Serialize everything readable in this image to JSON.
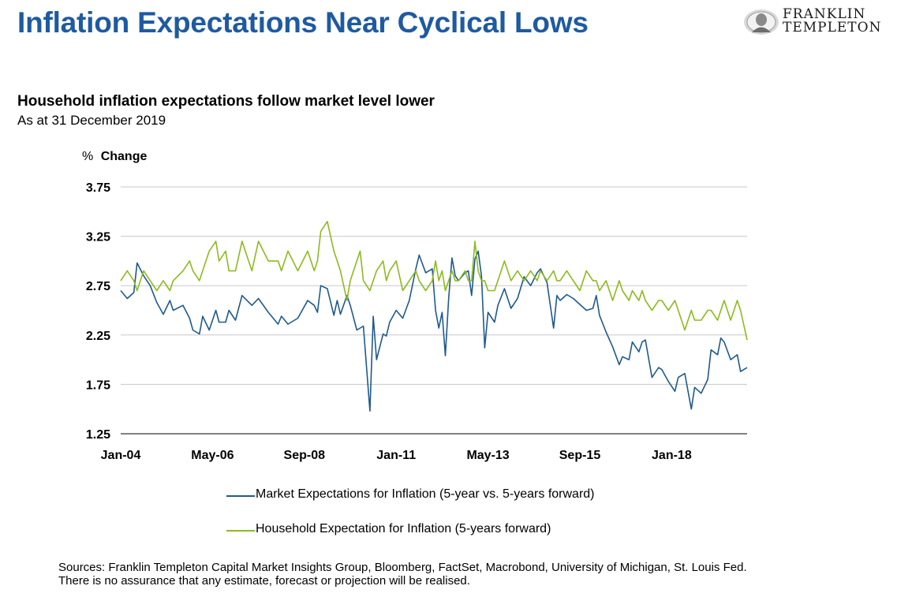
{
  "header": {
    "title": "Inflation Expectations Near Cyclical Lows",
    "logo_line1": "FRANKLIN",
    "logo_line2": "TEMPLETON"
  },
  "chart_header": {
    "subtitle": "Household inflation expectations follow market level lower",
    "as_at": "As at 31 December 2019"
  },
  "colors": {
    "title": "#1f5aa0",
    "market": "#1f5a8c",
    "household": "#8dba1f",
    "grid": "#c8c8c8"
  },
  "chart_data": {
    "type": "line",
    "ylabel_prefix": "%",
    "ylabel": "Change",
    "ylim": [
      1.25,
      3.75
    ],
    "yticks": [
      "3.75",
      "3.25",
      "2.75",
      "2.25",
      "1.75",
      "1.25"
    ],
    "x_range": [
      "2004-01",
      "2019-12"
    ],
    "xticks": [
      {
        "label": "Jan-04",
        "date": "2004-01"
      },
      {
        "label": "May-06",
        "date": "2006-05"
      },
      {
        "label": "Sep-08",
        "date": "2008-09"
      },
      {
        "label": "Jan-11",
        "date": "2011-01"
      },
      {
        "label": "May-13",
        "date": "2013-05"
      },
      {
        "label": "Sep-15",
        "date": "2015-09"
      },
      {
        "label": "Jan-18",
        "date": "2018-01"
      }
    ],
    "grid": "horizontal",
    "legend_position": "bottom",
    "series": [
      {
        "name": "Market Expectations for Inflation (5-year vs. 5-years forward)",
        "points": [
          [
            "2004-01",
            2.7
          ],
          [
            "2004-03",
            2.62
          ],
          [
            "2004-05",
            2.68
          ],
          [
            "2004-06",
            2.98
          ],
          [
            "2004-08",
            2.85
          ],
          [
            "2004-10",
            2.75
          ],
          [
            "2004-12",
            2.58
          ],
          [
            "2005-02",
            2.46
          ],
          [
            "2005-04",
            2.6
          ],
          [
            "2005-05",
            2.5
          ],
          [
            "2005-08",
            2.55
          ],
          [
            "2005-10",
            2.42
          ],
          [
            "2005-11",
            2.3
          ],
          [
            "2006-01",
            2.26
          ],
          [
            "2006-02",
            2.44
          ],
          [
            "2006-04",
            2.3
          ],
          [
            "2006-06",
            2.5
          ],
          [
            "2006-07",
            2.38
          ],
          [
            "2006-09",
            2.38
          ],
          [
            "2006-10",
            2.5
          ],
          [
            "2006-12",
            2.4
          ],
          [
            "2007-02",
            2.65
          ],
          [
            "2007-05",
            2.55
          ],
          [
            "2007-07",
            2.62
          ],
          [
            "2007-10",
            2.48
          ],
          [
            "2008-01",
            2.36
          ],
          [
            "2008-02",
            2.44
          ],
          [
            "2008-04",
            2.36
          ],
          [
            "2008-07",
            2.42
          ],
          [
            "2008-10",
            2.6
          ],
          [
            "2008-12",
            2.55
          ],
          [
            "2009-01",
            2.48
          ],
          [
            "2009-02",
            2.75
          ],
          [
            "2009-04",
            2.72
          ],
          [
            "2009-06",
            2.45
          ],
          [
            "2009-07",
            2.6
          ],
          [
            "2009-08",
            2.46
          ],
          [
            "2009-10",
            2.65
          ],
          [
            "2009-11",
            2.55
          ],
          [
            "2010-01",
            2.3
          ],
          [
            "2010-02",
            2.32
          ],
          [
            "2010-03",
            2.34
          ],
          [
            "2010-05",
            1.48
          ],
          [
            "2010-06",
            2.44
          ],
          [
            "2010-07",
            2.0
          ],
          [
            "2010-09",
            2.26
          ],
          [
            "2010-10",
            2.24
          ],
          [
            "2010-11",
            2.38
          ],
          [
            "2011-01",
            2.5
          ],
          [
            "2011-03",
            2.42
          ],
          [
            "2011-05",
            2.6
          ],
          [
            "2011-07",
            2.92
          ],
          [
            "2011-08",
            3.06
          ],
          [
            "2011-10",
            2.88
          ],
          [
            "2011-12",
            2.92
          ],
          [
            "2012-01",
            2.5
          ],
          [
            "2012-02",
            2.32
          ],
          [
            "2012-03",
            2.48
          ],
          [
            "2012-04",
            2.04
          ],
          [
            "2012-05",
            2.62
          ],
          [
            "2012-06",
            3.03
          ],
          [
            "2012-07",
            2.85
          ],
          [
            "2012-08",
            2.8
          ],
          [
            "2012-10",
            2.88
          ],
          [
            "2012-11",
            2.9
          ],
          [
            "2012-12",
            2.65
          ],
          [
            "2013-01",
            3.02
          ],
          [
            "2013-02",
            3.1
          ],
          [
            "2013-03",
            2.85
          ],
          [
            "2013-04",
            2.12
          ],
          [
            "2013-05",
            2.48
          ],
          [
            "2013-07",
            2.38
          ],
          [
            "2013-08",
            2.55
          ],
          [
            "2013-10",
            2.72
          ],
          [
            "2013-12",
            2.52
          ],
          [
            "2014-02",
            2.62
          ],
          [
            "2014-04",
            2.84
          ],
          [
            "2014-06",
            2.75
          ],
          [
            "2014-08",
            2.88
          ],
          [
            "2014-09",
            2.92
          ],
          [
            "2014-11",
            2.78
          ],
          [
            "2015-01",
            2.32
          ],
          [
            "2015-02",
            2.65
          ],
          [
            "2015-03",
            2.6
          ],
          [
            "2015-05",
            2.66
          ],
          [
            "2015-07",
            2.62
          ],
          [
            "2015-09",
            2.56
          ],
          [
            "2015-11",
            2.5
          ],
          [
            "2016-01",
            2.52
          ],
          [
            "2016-02",
            2.65
          ],
          [
            "2016-03",
            2.45
          ],
          [
            "2016-05",
            2.28
          ],
          [
            "2016-07",
            2.13
          ],
          [
            "2016-09",
            1.95
          ],
          [
            "2016-10",
            2.03
          ],
          [
            "2016-12",
            2.0
          ],
          [
            "2017-01",
            2.18
          ],
          [
            "2017-03",
            2.08
          ],
          [
            "2017-04",
            2.18
          ],
          [
            "2017-05",
            2.2
          ],
          [
            "2017-07",
            1.82
          ],
          [
            "2017-09",
            1.92
          ],
          [
            "2017-10",
            1.9
          ],
          [
            "2017-12",
            1.78
          ],
          [
            "2018-02",
            1.68
          ],
          [
            "2018-03",
            1.82
          ],
          [
            "2018-05",
            1.86
          ],
          [
            "2018-07",
            1.5
          ],
          [
            "2018-08",
            1.72
          ],
          [
            "2018-10",
            1.66
          ],
          [
            "2018-12",
            1.8
          ],
          [
            "2019-01",
            2.1
          ],
          [
            "2019-03",
            2.05
          ],
          [
            "2019-04",
            2.22
          ],
          [
            "2019-05",
            2.18
          ],
          [
            "2019-07",
            2.0
          ],
          [
            "2019-09",
            2.05
          ],
          [
            "2019-10",
            1.88
          ],
          [
            "2019-12",
            1.92
          ]
        ]
      },
      {
        "name": "Household Expectation for Inflation (5-years forward)",
        "points": [
          [
            "2004-01",
            2.8
          ],
          [
            "2004-03",
            2.9
          ],
          [
            "2004-05",
            2.8
          ],
          [
            "2004-06",
            2.7
          ],
          [
            "2004-08",
            2.9
          ],
          [
            "2004-10",
            2.8
          ],
          [
            "2004-12",
            2.7
          ],
          [
            "2005-02",
            2.8
          ],
          [
            "2005-04",
            2.7
          ],
          [
            "2005-05",
            2.8
          ],
          [
            "2005-08",
            2.9
          ],
          [
            "2005-10",
            3.0
          ],
          [
            "2005-11",
            2.9
          ],
          [
            "2006-01",
            2.8
          ],
          [
            "2006-02",
            2.9
          ],
          [
            "2006-04",
            3.1
          ],
          [
            "2006-06",
            3.2
          ],
          [
            "2006-07",
            3.0
          ],
          [
            "2006-09",
            3.1
          ],
          [
            "2006-10",
            2.9
          ],
          [
            "2006-12",
            2.9
          ],
          [
            "2007-02",
            3.2
          ],
          [
            "2007-05",
            2.9
          ],
          [
            "2007-07",
            3.2
          ],
          [
            "2007-10",
            3.0
          ],
          [
            "2008-01",
            3.0
          ],
          [
            "2008-02",
            2.9
          ],
          [
            "2008-04",
            3.1
          ],
          [
            "2008-07",
            2.9
          ],
          [
            "2008-10",
            3.1
          ],
          [
            "2008-12",
            2.9
          ],
          [
            "2009-01",
            3.0
          ],
          [
            "2009-02",
            3.3
          ],
          [
            "2009-04",
            3.4
          ],
          [
            "2009-06",
            3.1
          ],
          [
            "2009-07",
            3.0
          ],
          [
            "2009-08",
            2.9
          ],
          [
            "2009-10",
            2.6
          ],
          [
            "2009-11",
            2.8
          ],
          [
            "2010-01",
            3.0
          ],
          [
            "2010-02",
            3.1
          ],
          [
            "2010-03",
            2.8
          ],
          [
            "2010-05",
            2.7
          ],
          [
            "2010-06",
            2.8
          ],
          [
            "2010-07",
            2.9
          ],
          [
            "2010-09",
            3.0
          ],
          [
            "2010-10",
            2.8
          ],
          [
            "2010-11",
            2.9
          ],
          [
            "2011-01",
            3.0
          ],
          [
            "2011-03",
            2.7
          ],
          [
            "2011-05",
            2.8
          ],
          [
            "2011-07",
            2.9
          ],
          [
            "2011-08",
            2.8
          ],
          [
            "2011-10",
            2.7
          ],
          [
            "2011-12",
            2.8
          ],
          [
            "2012-01",
            3.0
          ],
          [
            "2012-02",
            2.8
          ],
          [
            "2012-03",
            2.9
          ],
          [
            "2012-04",
            2.7
          ],
          [
            "2012-05",
            2.8
          ],
          [
            "2012-06",
            2.9
          ],
          [
            "2012-07",
            2.8
          ],
          [
            "2012-08",
            2.8
          ],
          [
            "2012-10",
            2.9
          ],
          [
            "2012-11",
            2.8
          ],
          [
            "2012-12",
            2.8
          ],
          [
            "2013-01",
            3.2
          ],
          [
            "2013-02",
            2.9
          ],
          [
            "2013-03",
            2.8
          ],
          [
            "2013-04",
            2.8
          ],
          [
            "2013-05",
            2.7
          ],
          [
            "2013-07",
            2.7
          ],
          [
            "2013-08",
            2.8
          ],
          [
            "2013-10",
            3.0
          ],
          [
            "2013-12",
            2.8
          ],
          [
            "2014-02",
            2.9
          ],
          [
            "2014-04",
            2.8
          ],
          [
            "2014-06",
            2.9
          ],
          [
            "2014-08",
            2.8
          ],
          [
            "2014-09",
            2.9
          ],
          [
            "2014-11",
            2.8
          ],
          [
            "2015-01",
            2.9
          ],
          [
            "2015-02",
            2.8
          ],
          [
            "2015-03",
            2.8
          ],
          [
            "2015-05",
            2.9
          ],
          [
            "2015-07",
            2.8
          ],
          [
            "2015-09",
            2.7
          ],
          [
            "2015-11",
            2.9
          ],
          [
            "2016-01",
            2.8
          ],
          [
            "2016-02",
            2.8
          ],
          [
            "2016-03",
            2.7
          ],
          [
            "2016-05",
            2.8
          ],
          [
            "2016-07",
            2.6
          ],
          [
            "2016-09",
            2.8
          ],
          [
            "2016-10",
            2.7
          ],
          [
            "2016-12",
            2.6
          ],
          [
            "2017-01",
            2.7
          ],
          [
            "2017-03",
            2.6
          ],
          [
            "2017-04",
            2.7
          ],
          [
            "2017-05",
            2.6
          ],
          [
            "2017-07",
            2.5
          ],
          [
            "2017-09",
            2.6
          ],
          [
            "2017-10",
            2.6
          ],
          [
            "2017-12",
            2.5
          ],
          [
            "2018-02",
            2.6
          ],
          [
            "2018-03",
            2.5
          ],
          [
            "2018-05",
            2.3
          ],
          [
            "2018-07",
            2.5
          ],
          [
            "2018-08",
            2.4
          ],
          [
            "2018-10",
            2.4
          ],
          [
            "2018-12",
            2.5
          ],
          [
            "2019-01",
            2.5
          ],
          [
            "2019-03",
            2.4
          ],
          [
            "2019-04",
            2.5
          ],
          [
            "2019-05",
            2.6
          ],
          [
            "2019-07",
            2.4
          ],
          [
            "2019-09",
            2.6
          ],
          [
            "2019-10",
            2.5
          ],
          [
            "2019-12",
            2.2
          ]
        ]
      }
    ]
  },
  "footer": {
    "sources": "Sources: Franklin Templeton Capital Market Insights Group, Bloomberg, FactSet, Macrobond, University of Michigan, St. Louis Fed.",
    "disclaimer": "There is no assurance that any estimate, forecast or projection will be realised."
  }
}
